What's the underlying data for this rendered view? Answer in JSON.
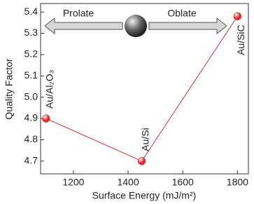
{
  "chart_data": {
    "type": "line",
    "x_label": "Surface Energy (mJ/m²)",
    "y_label": "Quality Factor",
    "x": [
      1100,
      1450,
      1800
    ],
    "series": [
      {
        "color": "#e8262b",
        "values": [
          4.9,
          4.7,
          5.38
        ]
      }
    ],
    "point_labels": [
      "Au/Al₂O₃",
      "Au/Si",
      "Au/SiC"
    ],
    "annotations": [
      "Prolate",
      "Oblate"
    ],
    "xlim": [
      1080,
      1840
    ],
    "xticks": [
      1200,
      1400,
      1600,
      1800
    ],
    "ylim": [
      4.64,
      5.44
    ],
    "yticks": [
      4.7,
      4.8,
      4.9,
      {
        "value": 5,
        "label": "5.0"
      },
      5.1,
      5.2,
      5.3,
      5.4
    ]
  }
}
